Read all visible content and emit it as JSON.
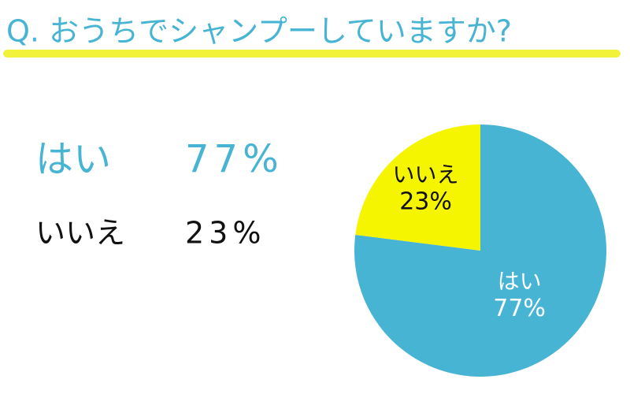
{
  "chart_data": {
    "type": "pie",
    "title": "Q. おうちでシャンプーしていますか?",
    "categories": [
      "はい",
      "いいえ"
    ],
    "values": [
      77,
      23
    ],
    "value_labels": [
      "77%",
      "23%"
    ],
    "colors": [
      "#47b4d4",
      "#f5f500"
    ]
  }
}
